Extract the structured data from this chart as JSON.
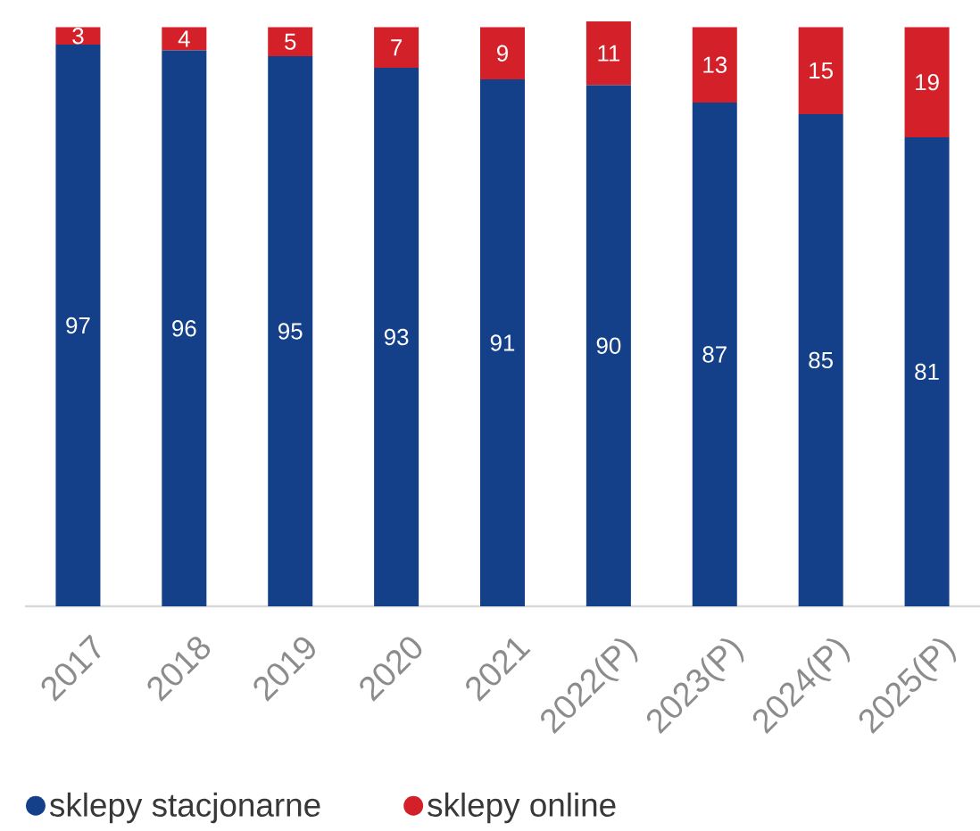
{
  "chart_data": {
    "type": "bar",
    "stacked": true,
    "categories": [
      "2017",
      "2018",
      "2019",
      "2020",
      "2021",
      "2022(P)",
      "2023(P)",
      "2024(P)",
      "2025(P)"
    ],
    "series": [
      {
        "name": "sklepy stacjonarne",
        "color": "#14408a",
        "values": [
          97,
          96,
          95,
          93,
          91,
          90,
          87,
          85,
          81
        ]
      },
      {
        "name": "sklepy online",
        "color": "#d42129",
        "values": [
          3,
          4,
          5,
          7,
          9,
          11,
          13,
          15,
          19
        ]
      }
    ],
    "data_labels": true,
    "legend": "bottom"
  }
}
